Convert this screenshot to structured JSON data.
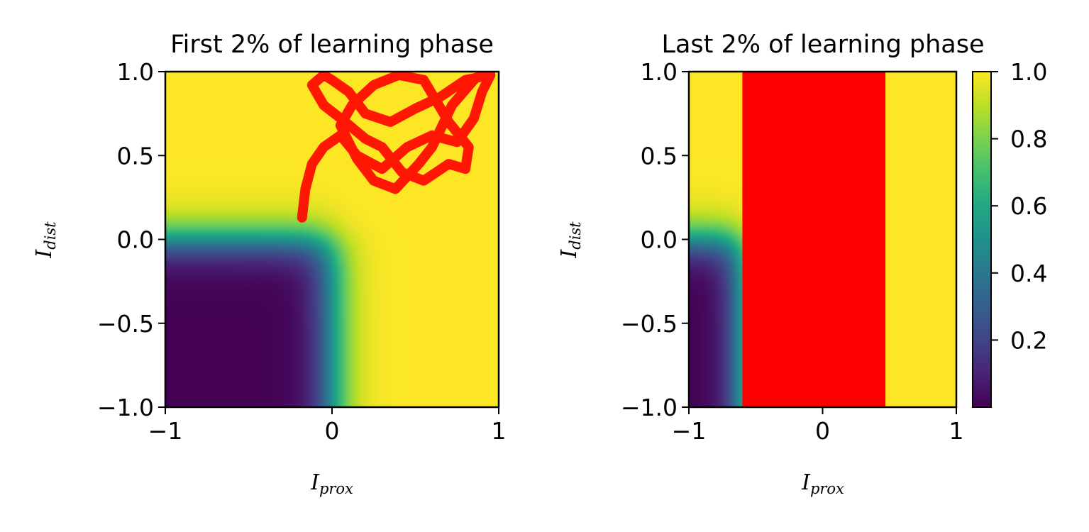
{
  "chart_data": [
    {
      "type": "heatmap",
      "title": "First 2% of learning phase",
      "xlabel": "I",
      "xlabel_sub": "prox",
      "ylabel": "I",
      "ylabel_sub": "dist",
      "xlim": [
        -1,
        1
      ],
      "ylim": [
        -1,
        1
      ],
      "xticks": [
        -1,
        0,
        1
      ],
      "xtick_labels": [
        "−1",
        "0",
        "1"
      ],
      "yticks": [
        -1.0,
        -0.5,
        0.0,
        0.5,
        1.0
      ],
      "ytick_labels": [
        "−1.0",
        "−0.5",
        "0.0",
        "0.5",
        "1.0"
      ],
      "colormap": "viridis",
      "field": {
        "description_free": true,
        "x_threshold": 0.0,
        "y_threshold": 0.0,
        "width": 0.07,
        "low_value": 0.0,
        "high_value": 1.0
      },
      "trajectory": {
        "color": "#ff0000",
        "points": [
          [
            -0.18,
            0.13
          ],
          [
            -0.16,
            0.3
          ],
          [
            -0.12,
            0.45
          ],
          [
            -0.05,
            0.55
          ],
          [
            0.05,
            0.62
          ],
          [
            0.15,
            0.5
          ],
          [
            0.3,
            0.42
          ],
          [
            0.45,
            0.55
          ],
          [
            0.6,
            0.62
          ],
          [
            0.75,
            0.58
          ],
          [
            0.85,
            0.72
          ],
          [
            0.9,
            0.88
          ],
          [
            0.95,
            0.98
          ],
          [
            0.8,
            0.95
          ],
          [
            0.65,
            0.85
          ],
          [
            0.5,
            0.78
          ],
          [
            0.35,
            0.7
          ],
          [
            0.2,
            0.75
          ],
          [
            0.1,
            0.88
          ],
          [
            0.0,
            0.95
          ],
          [
            -0.05,
            0.98
          ],
          [
            -0.12,
            0.92
          ],
          [
            -0.05,
            0.8
          ],
          [
            0.08,
            0.7
          ],
          [
            0.2,
            0.6
          ],
          [
            0.3,
            0.55
          ],
          [
            0.42,
            0.4
          ],
          [
            0.55,
            0.35
          ],
          [
            0.7,
            0.45
          ],
          [
            0.8,
            0.42
          ],
          [
            0.82,
            0.55
          ],
          [
            0.7,
            0.7
          ],
          [
            0.55,
            0.95
          ],
          [
            0.4,
            0.98
          ],
          [
            0.25,
            0.92
          ],
          [
            0.12,
            0.8
          ],
          [
            0.05,
            0.68
          ],
          [
            0.15,
            0.48
          ],
          [
            0.25,
            0.35
          ],
          [
            0.38,
            0.3
          ],
          [
            0.52,
            0.45
          ],
          [
            0.6,
            0.55
          ],
          [
            0.72,
            0.8
          ],
          [
            0.85,
            0.95
          ],
          [
            0.92,
            1.0
          ]
        ]
      }
    },
    {
      "type": "heatmap",
      "title": "Last 2% of learning phase",
      "xlabel": "I",
      "xlabel_sub": "prox",
      "ylabel": "I",
      "ylabel_sub": "dist",
      "xlim": [
        -1,
        1
      ],
      "ylim": [
        -1,
        1
      ],
      "xticks": [
        -1,
        0,
        1
      ],
      "xtick_labels": [
        "−1",
        "0",
        "1"
      ],
      "yticks": [
        -1.0,
        -0.5,
        0.0,
        0.5,
        1.0
      ],
      "ytick_labels": [
        "−1.0",
        "−0.5",
        "0.0",
        "0.5",
        "1.0"
      ],
      "colormap": "viridis",
      "field": {
        "x_threshold": -0.62,
        "y_threshold": 0.0,
        "width": 0.07,
        "low_value": 0.0,
        "high_value": 1.0
      },
      "trajectory": {
        "color": "#ff0000",
        "band": {
          "x_min": -0.6,
          "x_max": 0.47,
          "y_min": -1.0,
          "y_max": 1.0
        }
      },
      "colorbar": {
        "ticks": [
          0.2,
          0.4,
          0.6,
          0.8,
          1.0
        ],
        "tick_labels": [
          "0.2",
          "0.4",
          "0.6",
          "0.8",
          "1.0"
        ],
        "range": [
          0.0,
          1.0
        ]
      }
    }
  ]
}
